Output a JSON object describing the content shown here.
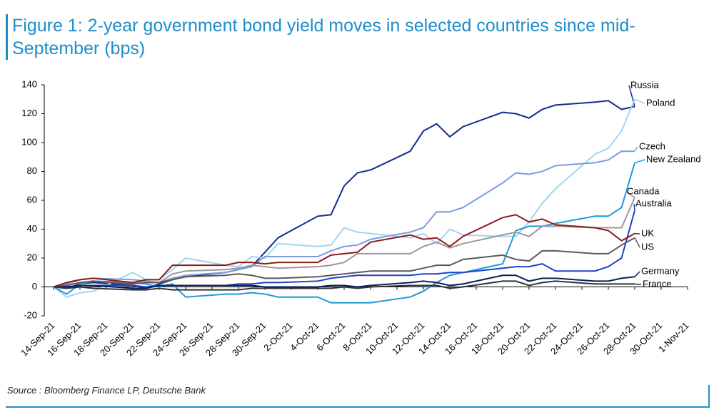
{
  "chart_data": {
    "type": "line",
    "title": "Figure 1: 2-year government bond yield moves in selected countries since mid-September (bps)",
    "source": "Source : Bloomberg Finance LP, Deutsche Bank",
    "x": [
      "2021-09-14",
      "2021-09-15",
      "2021-09-16",
      "2021-09-17",
      "2021-09-20",
      "2021-09-21",
      "2021-09-22",
      "2021-09-23",
      "2021-09-24",
      "2021-09-27",
      "2021-09-28",
      "2021-09-29",
      "2021-09-30",
      "2021-10-01",
      "2021-10-04",
      "2021-10-05",
      "2021-10-06",
      "2021-10-07",
      "2021-10-08",
      "2021-10-11",
      "2021-10-12",
      "2021-10-13",
      "2021-10-14",
      "2021-10-15",
      "2021-10-18",
      "2021-10-19",
      "2021-10-20",
      "2021-10-21",
      "2021-10-22",
      "2021-10-25",
      "2021-10-26",
      "2021-10-27",
      "2021-10-28"
    ],
    "xlim": [
      "2021-09-14",
      "2021-11-01"
    ],
    "xticks": [
      {
        "value": "2021-09-14",
        "label": "14-Sep-21"
      },
      {
        "value": "2021-09-16",
        "label": "16-Sep-21"
      },
      {
        "value": "2021-09-18",
        "label": "18-Sep-21"
      },
      {
        "value": "2021-09-20",
        "label": "20-Sep-21"
      },
      {
        "value": "2021-09-22",
        "label": "22-Sep-21"
      },
      {
        "value": "2021-09-24",
        "label": "24-Sep-21"
      },
      {
        "value": "2021-09-26",
        "label": "26-Sep-21"
      },
      {
        "value": "2021-09-28",
        "label": "28-Sep-21"
      },
      {
        "value": "2021-09-30",
        "label": "30-Sep-21"
      },
      {
        "value": "2021-10-02",
        "label": "2-Oct-21"
      },
      {
        "value": "2021-10-04",
        "label": "4-Oct-21"
      },
      {
        "value": "2021-10-06",
        "label": "6-Oct-21"
      },
      {
        "value": "2021-10-08",
        "label": "8-Oct-21"
      },
      {
        "value": "2021-10-10",
        "label": "10-Oct-21"
      },
      {
        "value": "2021-10-12",
        "label": "12-Oct-21"
      },
      {
        "value": "2021-10-14",
        "label": "14-Oct-21"
      },
      {
        "value": "2021-10-16",
        "label": "16-Oct-21"
      },
      {
        "value": "2021-10-18",
        "label": "18-Oct-21"
      },
      {
        "value": "2021-10-20",
        "label": "20-Oct-21"
      },
      {
        "value": "2021-10-22",
        "label": "22-Oct-21"
      },
      {
        "value": "2021-10-24",
        "label": "24-Oct-21"
      },
      {
        "value": "2021-10-26",
        "label": "26-Oct-21"
      },
      {
        "value": "2021-10-28",
        "label": "28-Oct-21"
      },
      {
        "value": "2021-10-30",
        "label": "30-Oct-21"
      },
      {
        "value": "2021-11-01",
        "label": "1-Nov-21"
      }
    ],
    "ylim": [
      -20,
      140
    ],
    "yticks": [
      -20,
      0,
      20,
      40,
      60,
      80,
      100,
      120,
      140
    ],
    "grid": false,
    "series": [
      {
        "name": "Russia",
        "color": "#142c8c",
        "values": [
          0,
          -1,
          2,
          3,
          1,
          -1,
          2,
          5,
          7,
          10,
          12,
          14,
          24,
          34,
          49,
          50,
          70,
          79,
          81,
          94,
          108,
          113,
          104,
          111,
          121,
          120,
          117,
          123,
          126,
          128,
          129,
          123,
          125
        ]
      },
      {
        "name": "Poland",
        "color": "#9fd6f2",
        "values": [
          0,
          -7,
          -4,
          -3,
          10,
          5,
          5,
          12,
          20,
          15,
          14,
          21,
          20,
          30,
          28,
          29,
          41,
          38,
          37,
          34,
          37,
          30,
          40,
          36,
          35,
          35,
          45,
          58,
          68,
          92,
          96,
          108,
          130
        ]
      },
      {
        "name": "Czech",
        "color": "#7b9be0",
        "values": [
          0,
          2,
          5,
          6,
          5,
          4,
          3,
          6,
          8,
          10,
          12,
          14,
          21,
          21,
          21,
          25,
          28,
          29,
          33,
          38,
          41,
          52,
          52,
          55,
          72,
          79,
          78,
          80,
          84,
          86,
          88,
          94,
          94
        ]
      },
      {
        "name": "New Zealand",
        "color": "#1f9ad8",
        "values": [
          0,
          -5,
          2,
          4,
          3,
          2,
          0,
          2,
          -7,
          -5,
          -5,
          -4,
          -5,
          -7,
          -7,
          -11,
          -11,
          -11,
          -11,
          -7,
          -3,
          3,
          8,
          10,
          16,
          39,
          42,
          42,
          44,
          49,
          49,
          55,
          86
        ]
      },
      {
        "name": "Canada",
        "color": "#9a9a9a",
        "values": [
          0,
          1,
          3,
          4,
          3,
          3,
          3,
          9,
          11,
          12,
          13,
          15,
          14,
          13,
          14,
          15,
          17,
          23,
          23,
          23,
          28,
          31,
          27,
          30,
          36,
          38,
          35,
          42,
          42,
          41,
          41,
          41,
          62
        ]
      },
      {
        "name": "Australia",
        "color": "#1f44c8",
        "values": [
          0,
          0,
          1,
          1,
          1,
          0,
          1,
          1,
          1,
          1,
          2,
          2,
          3,
          3,
          4,
          6,
          7,
          8,
          8,
          8,
          9,
          9,
          10,
          10,
          13,
          14,
          14,
          16,
          11,
          11,
          14,
          20,
          53
        ]
      },
      {
        "name": "UK",
        "color": "#8b1a1a",
        "values": [
          0,
          3,
          5,
          6,
          3,
          5,
          5,
          15,
          15,
          15,
          17,
          17,
          16,
          17,
          17,
          22,
          23,
          24,
          31,
          36,
          33,
          34,
          28,
          35,
          48,
          50,
          45,
          47,
          43,
          41,
          39,
          32,
          37
        ]
      },
      {
        "name": "US",
        "color": "#5a5a5a",
        "values": [
          0,
          1,
          3,
          4,
          2,
          3,
          3,
          5,
          7,
          8,
          9,
          8,
          6,
          6,
          7,
          8,
          9,
          10,
          11,
          11,
          13,
          15,
          15,
          19,
          22,
          19,
          18,
          25,
          25,
          23,
          23,
          29,
          34
        ]
      },
      {
        "name": "Germany",
        "color": "#0c1f5e",
        "values": [
          0,
          0,
          1,
          1,
          -1,
          -1,
          1,
          1,
          1,
          1,
          1,
          1,
          0,
          0,
          0,
          1,
          1,
          0,
          1,
          3,
          4,
          3,
          1,
          2,
          8,
          8,
          4,
          6,
          6,
          4,
          4,
          6,
          7
        ]
      },
      {
        "name": "France",
        "color": "#333333",
        "values": [
          0,
          -1,
          0,
          -1,
          -2,
          -2,
          -1,
          -2,
          -2,
          -2,
          -2,
          -1,
          -1,
          -1,
          -1,
          -1,
          0,
          -1,
          0,
          1,
          1,
          1,
          -1,
          0,
          4,
          4,
          1,
          3,
          4,
          2,
          2,
          2,
          2
        ]
      }
    ]
  }
}
